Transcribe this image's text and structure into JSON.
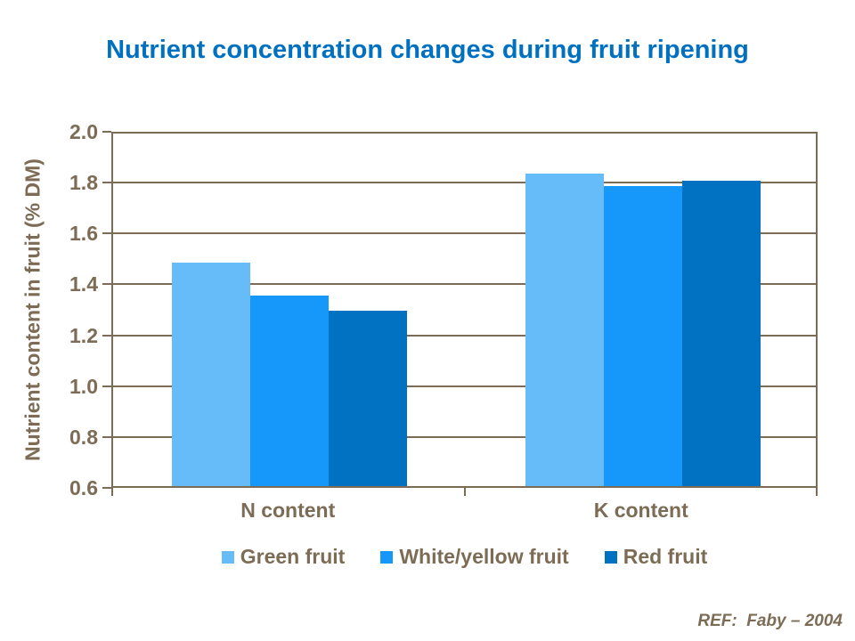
{
  "title": "Nutrient concentration changes during fruit ripening",
  "ref_note": "REF:  Faby – 2004",
  "colors": {
    "title": "#0070C0",
    "axis_and_text": "#7D6C55",
    "background": "#FFFFFF",
    "series_green_fruit": "#66BBF9",
    "series_white_yellow_fruit": "#1697FA",
    "series_red_fruit": "#0072C1"
  },
  "chart_data": {
    "type": "bar",
    "title": "Nutrient concentration changes during fruit ripening",
    "categories": [
      "N content",
      "K content"
    ],
    "series": [
      {
        "name": "Green fruit",
        "color": "#66BBF9",
        "values": [
          1.48,
          1.83
        ]
      },
      {
        "name": "White/yellow fruit",
        "color": "#1697FA",
        "values": [
          1.35,
          1.78
        ]
      },
      {
        "name": "Red fruit",
        "color": "#0072C1",
        "values": [
          1.29,
          1.8
        ]
      }
    ],
    "xlabel": "",
    "ylabel": "Nutrient content in fruit (% DM)",
    "ylim": [
      0.6,
      2.0
    ],
    "ytick_step": 0.2,
    "yticks": [
      "2.0",
      "1.8",
      "1.6",
      "1.4",
      "1.2",
      "1.0",
      "0.8",
      "0.6"
    ],
    "grid": true,
    "legend_position": "bottom",
    "annotation": "REF:  Faby – 2004"
  }
}
